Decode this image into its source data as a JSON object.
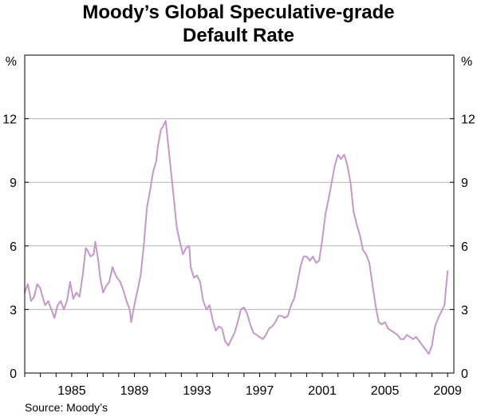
{
  "chart_data": {
    "type": "line",
    "title_line1": "Moody’s Global Speculative-grade",
    "title_line2": "Default Rate",
    "y_unit_left": "%",
    "y_unit_right": "%",
    "ylim": [
      0,
      15
    ],
    "yticks": [
      0,
      3,
      6,
      9,
      12
    ],
    "xlim": [
      1982.0,
      2009.4
    ],
    "xticks": [
      1985,
      1989,
      1993,
      1997,
      2001,
      2005,
      2009
    ],
    "grid": true,
    "source": "Source: Moody’s",
    "line_color": "#c497c9",
    "series": [
      {
        "x": [
          1982.0,
          1982.2,
          1982.4,
          1982.6,
          1982.8,
          1983.0,
          1983.1,
          1983.3,
          1983.5,
          1983.7,
          1983.9,
          1984.1,
          1984.3,
          1984.5,
          1984.7,
          1984.9,
          1985.1,
          1985.3,
          1985.5,
          1985.7,
          1985.9,
          1986.0,
          1986.2,
          1986.4,
          1986.5,
          1986.7,
          1986.8,
          1987.0,
          1987.2,
          1987.4,
          1987.6,
          1987.7,
          1987.9,
          1988.1,
          1988.3,
          1988.5,
          1988.7,
          1988.8,
          1989.0,
          1989.2,
          1989.4,
          1989.6,
          1989.8,
          1990.0,
          1990.2,
          1990.4,
          1990.5,
          1990.7,
          1990.8,
          1991.0,
          1991.1,
          1991.3,
          1991.5,
          1991.7,
          1991.9,
          1992.1,
          1992.3,
          1992.5,
          1992.6,
          1992.8,
          1993.0,
          1993.2,
          1993.4,
          1993.6,
          1993.8,
          1994.0,
          1994.2,
          1994.4,
          1994.6,
          1994.8,
          1995.0,
          1995.2,
          1995.4,
          1995.6,
          1995.8,
          1996.0,
          1996.2,
          1996.4,
          1996.6,
          1996.8,
          1997.0,
          1997.2,
          1997.4,
          1997.6,
          1997.8,
          1998.0,
          1998.2,
          1998.4,
          1998.6,
          1998.8,
          1999.0,
          1999.2,
          1999.4,
          1999.6,
          1999.8,
          2000.0,
          2000.2,
          2000.4,
          2000.6,
          2000.8,
          2001.0,
          2001.2,
          2001.4,
          2001.6,
          2001.8,
          2002.0,
          2002.2,
          2002.4,
          2002.6,
          2002.8,
          2003.0,
          2003.2,
          2003.4,
          2003.6,
          2003.8,
          2004.0,
          2004.2,
          2004.4,
          2004.6,
          2004.8,
          2005.0,
          2005.2,
          2005.4,
          2005.6,
          2005.8,
          2006.0,
          2006.2,
          2006.4,
          2006.6,
          2006.8,
          2007.0,
          2007.2,
          2007.4,
          2007.6,
          2007.8,
          2008.0,
          2008.2,
          2008.4,
          2008.6,
          2008.8,
          2009.0
        ],
        "y": [
          3.8,
          4.2,
          3.4,
          3.6,
          4.2,
          4.0,
          3.7,
          3.2,
          3.4,
          3.0,
          2.6,
          3.2,
          3.4,
          3.0,
          3.4,
          4.3,
          3.5,
          3.8,
          3.6,
          4.6,
          5.9,
          5.8,
          5.5,
          5.6,
          6.2,
          5.3,
          4.6,
          3.8,
          4.1,
          4.3,
          5.0,
          4.8,
          4.5,
          4.3,
          3.9,
          3.4,
          3.0,
          2.4,
          3.2,
          3.9,
          4.6,
          6.0,
          7.8,
          8.6,
          9.5,
          10.0,
          10.7,
          11.5,
          11.6,
          11.9,
          11.2,
          9.8,
          8.4,
          6.9,
          6.2,
          5.6,
          5.9,
          6.0,
          5.0,
          4.5,
          4.6,
          4.3,
          3.4,
          3.0,
          3.2,
          2.5,
          2.0,
          2.2,
          2.1,
          1.5,
          1.3,
          1.6,
          1.9,
          2.4,
          3.0,
          3.1,
          2.8,
          2.3,
          1.9,
          1.8,
          1.7,
          1.6,
          1.8,
          2.1,
          2.2,
          2.4,
          2.7,
          2.7,
          2.6,
          2.7,
          3.2,
          3.5,
          4.2,
          5.0,
          5.5,
          5.5,
          5.3,
          5.5,
          5.2,
          5.3,
          6.3,
          7.5,
          8.2,
          9.0,
          9.8,
          10.3,
          10.1,
          10.3,
          9.8,
          9.0,
          7.6,
          7.0,
          6.5,
          5.8,
          5.6,
          5.2,
          4.2,
          3.2,
          2.4,
          2.3,
          2.4,
          2.1,
          2.0,
          1.9,
          1.8,
          1.6,
          1.6,
          1.8,
          1.7,
          1.6,
          1.7,
          1.5,
          1.3,
          1.1,
          0.9,
          1.3,
          2.2,
          2.6,
          2.9,
          3.2,
          4.8
        ]
      }
    ]
  }
}
